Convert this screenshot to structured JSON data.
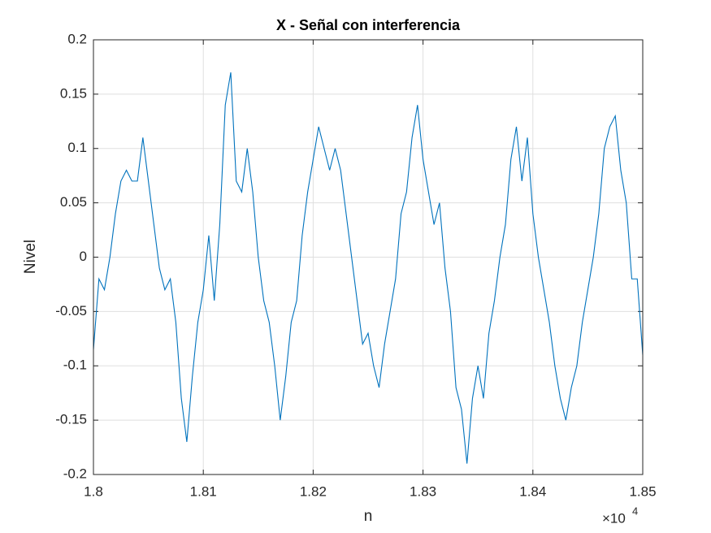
{
  "chart_data": {
    "type": "line",
    "title": "X - Señal con interferencia",
    "xlabel": "n",
    "ylabel": "Nivel",
    "x_exponent": {
      "base": "×10",
      "power": "4"
    },
    "x": [
      18000,
      18005,
      18010,
      18015,
      18020,
      18025,
      18030,
      18035,
      18040,
      18045,
      18050,
      18055,
      18060,
      18065,
      18070,
      18075,
      18080,
      18085,
      18090,
      18095,
      18100,
      18105,
      18110,
      18115,
      18120,
      18125,
      18130,
      18135,
      18140,
      18145,
      18150,
      18155,
      18160,
      18165,
      18170,
      18175,
      18180,
      18185,
      18190,
      18195,
      18200,
      18205,
      18210,
      18215,
      18220,
      18225,
      18230,
      18235,
      18240,
      18245,
      18250,
      18255,
      18260,
      18265,
      18270,
      18275,
      18280,
      18285,
      18290,
      18295,
      18300,
      18305,
      18310,
      18315,
      18320,
      18325,
      18330,
      18335,
      18340,
      18345,
      18350,
      18355,
      18360,
      18365,
      18370,
      18375,
      18380,
      18385,
      18390,
      18395,
      18400,
      18405,
      18410,
      18415,
      18420,
      18425,
      18430,
      18435,
      18440,
      18445,
      18450,
      18455,
      18460,
      18465,
      18470,
      18475,
      18480,
      18485,
      18490,
      18495,
      18500
    ],
    "series": [
      {
        "name": "X",
        "color": "#0072bd",
        "values": [
          -0.085,
          -0.02,
          -0.03,
          0.0,
          0.04,
          0.07,
          0.08,
          0.07,
          0.07,
          0.11,
          0.07,
          0.03,
          -0.01,
          -0.03,
          -0.02,
          -0.06,
          -0.13,
          -0.17,
          -0.11,
          -0.06,
          -0.03,
          0.02,
          -0.04,
          0.03,
          0.14,
          0.17,
          0.07,
          0.06,
          0.1,
          0.06,
          0.0,
          -0.04,
          -0.06,
          -0.1,
          -0.15,
          -0.11,
          -0.06,
          -0.04,
          0.02,
          0.06,
          0.09,
          0.12,
          0.1,
          0.08,
          0.1,
          0.08,
          0.04,
          0.0,
          -0.04,
          -0.08,
          -0.07,
          -0.1,
          -0.12,
          -0.08,
          -0.05,
          -0.02,
          0.04,
          0.06,
          0.11,
          0.14,
          0.09,
          0.06,
          0.03,
          0.05,
          -0.01,
          -0.05,
          -0.12,
          -0.14,
          -0.19,
          -0.13,
          -0.1,
          -0.13,
          -0.07,
          -0.04,
          0.0,
          0.03,
          0.09,
          0.12,
          0.07,
          0.11,
          0.04,
          0.0,
          -0.03,
          -0.06,
          -0.1,
          -0.13,
          -0.15,
          -0.12,
          -0.1,
          -0.06,
          -0.03,
          0.0,
          0.04,
          0.1,
          0.12,
          0.13,
          0.08,
          0.05,
          -0.02,
          -0.02,
          -0.09
        ]
      }
    ],
    "xlim": [
      18000,
      18500
    ],
    "xticks": [
      {
        "value": 18000,
        "label": "1.8"
      },
      {
        "value": 18100,
        "label": "1.81"
      },
      {
        "value": 18200,
        "label": "1.82"
      },
      {
        "value": 18300,
        "label": "1.83"
      },
      {
        "value": 18400,
        "label": "1.84"
      },
      {
        "value": 18500,
        "label": "1.85"
      }
    ],
    "ylim": [
      -0.2,
      0.2
    ],
    "yticks": [
      -0.2,
      -0.15,
      -0.1,
      -0.05,
      0,
      0.05,
      0.1,
      0.15,
      0.2
    ],
    "grid": true
  }
}
